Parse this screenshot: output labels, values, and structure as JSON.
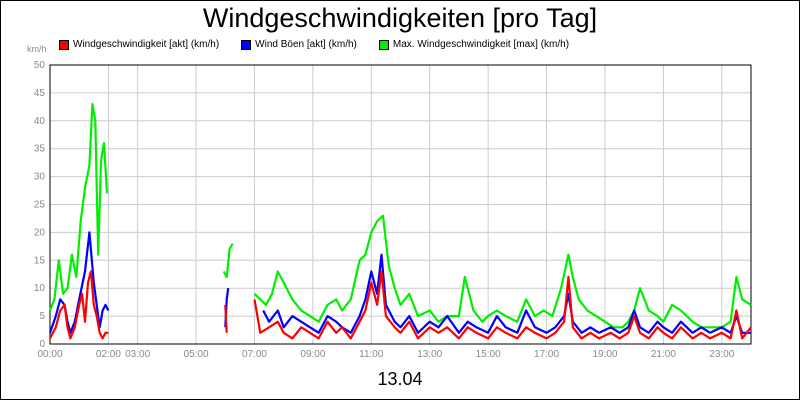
{
  "chart_data": {
    "type": "line",
    "title": "Windgeschwindigkeiten [pro Tag]",
    "xlabel": "13.04",
    "ylabel": "km/h",
    "ylim": [
      0,
      50
    ],
    "xlim_hours": [
      0,
      24
    ],
    "yticks": [
      "0",
      "5",
      "10",
      "15",
      "20",
      "25",
      "30",
      "35",
      "40",
      "45",
      "50"
    ],
    "xticks": [
      "00:00",
      "02:00",
      "03:00",
      "05:00",
      "07:00",
      "09:00",
      "11:00",
      "13:00",
      "15:00",
      "17:00",
      "19:00",
      "21:00",
      "23:00"
    ],
    "xtick_hours": [
      0,
      2,
      3,
      5,
      7,
      9,
      11,
      13,
      15,
      17,
      19,
      21,
      23
    ],
    "grid": true,
    "legend_position": "top-left",
    "series": [
      {
        "name": "Windgeschwindigkeit [akt] (km/h)",
        "color": "#ff0000",
        "segments": [
          [
            [
              0.0,
              1
            ],
            [
              0.2,
              3
            ],
            [
              0.35,
              6
            ],
            [
              0.5,
              7
            ],
            [
              0.6,
              3
            ],
            [
              0.7,
              1
            ],
            [
              0.85,
              3
            ],
            [
              1.0,
              7
            ],
            [
              1.1,
              9
            ],
            [
              1.2,
              4
            ],
            [
              1.3,
              11
            ],
            [
              1.4,
              13
            ],
            [
              1.5,
              7
            ],
            [
              1.6,
              5
            ],
            [
              1.7,
              2
            ],
            [
              1.8,
              1
            ],
            [
              1.9,
              2
            ],
            [
              2.0,
              2
            ]
          ],
          [
            [
              6.0,
              7
            ],
            [
              6.05,
              2
            ]
          ],
          [
            [
              7.0,
              8
            ],
            [
              7.2,
              2
            ],
            [
              7.5,
              3
            ],
            [
              7.8,
              4
            ],
            [
              8.0,
              2
            ],
            [
              8.3,
              1
            ],
            [
              8.6,
              3
            ],
            [
              8.9,
              2
            ],
            [
              9.2,
              1
            ],
            [
              9.5,
              4
            ],
            [
              9.8,
              2
            ],
            [
              10.0,
              3
            ],
            [
              10.3,
              1
            ],
            [
              10.6,
              4
            ],
            [
              10.8,
              6
            ],
            [
              11.0,
              11
            ],
            [
              11.2,
              7
            ],
            [
              11.35,
              13
            ],
            [
              11.5,
              5
            ],
            [
              11.8,
              3
            ],
            [
              12.0,
              2
            ],
            [
              12.3,
              4
            ],
            [
              12.6,
              1
            ],
            [
              13.0,
              3
            ],
            [
              13.3,
              2
            ],
            [
              13.6,
              3
            ],
            [
              14.0,
              1
            ],
            [
              14.3,
              3
            ],
            [
              14.6,
              2
            ],
            [
              15.0,
              1
            ],
            [
              15.3,
              3
            ],
            [
              15.6,
              2
            ],
            [
              16.0,
              1
            ],
            [
              16.3,
              3
            ],
            [
              16.6,
              2
            ],
            [
              17.0,
              1
            ],
            [
              17.3,
              2
            ],
            [
              17.6,
              4
            ],
            [
              17.75,
              12
            ],
            [
              17.9,
              3
            ],
            [
              18.2,
              1
            ],
            [
              18.5,
              2
            ],
            [
              18.8,
              1
            ],
            [
              19.2,
              2
            ],
            [
              19.5,
              1
            ],
            [
              19.8,
              2
            ],
            [
              20.0,
              5
            ],
            [
              20.2,
              2
            ],
            [
              20.5,
              1
            ],
            [
              20.8,
              3
            ],
            [
              21.0,
              2
            ],
            [
              21.3,
              1
            ],
            [
              21.6,
              3
            ],
            [
              22.0,
              1
            ],
            [
              22.3,
              2
            ],
            [
              22.6,
              1
            ],
            [
              23.0,
              2
            ],
            [
              23.3,
              1
            ],
            [
              23.5,
              6
            ],
            [
              23.7,
              1
            ],
            [
              24.0,
              3
            ]
          ]
        ]
      },
      {
        "name": "Wind Böen [akt] (km/h)",
        "color": "#0000ff",
        "segments": [
          [
            [
              0.0,
              2
            ],
            [
              0.2,
              5
            ],
            [
              0.35,
              8
            ],
            [
              0.5,
              7
            ],
            [
              0.6,
              4
            ],
            [
              0.7,
              2
            ],
            [
              0.85,
              4
            ],
            [
              1.0,
              8
            ],
            [
              1.2,
              13
            ],
            [
              1.35,
              20
            ],
            [
              1.5,
              11
            ],
            [
              1.6,
              7
            ],
            [
              1.7,
              3
            ],
            [
              1.8,
              6
            ],
            [
              1.9,
              7
            ],
            [
              2.0,
              6
            ]
          ],
          [
            [
              6.0,
              3
            ],
            [
              6.05,
              8
            ],
            [
              6.1,
              10
            ]
          ],
          [
            [
              7.3,
              6
            ],
            [
              7.5,
              4
            ],
            [
              7.8,
              6
            ],
            [
              8.0,
              3
            ],
            [
              8.3,
              5
            ],
            [
              8.6,
              4
            ],
            [
              8.9,
              3
            ],
            [
              9.2,
              2
            ],
            [
              9.5,
              5
            ],
            [
              9.8,
              4
            ],
            [
              10.0,
              3
            ],
            [
              10.3,
              2
            ],
            [
              10.6,
              5
            ],
            [
              10.8,
              8
            ],
            [
              11.0,
              13
            ],
            [
              11.2,
              9
            ],
            [
              11.35,
              16
            ],
            [
              11.5,
              7
            ],
            [
              11.8,
              4
            ],
            [
              12.0,
              3
            ],
            [
              12.3,
              5
            ],
            [
              12.6,
              2
            ],
            [
              13.0,
              4
            ],
            [
              13.3,
              3
            ],
            [
              13.6,
              5
            ],
            [
              14.0,
              2
            ],
            [
              14.3,
              4
            ],
            [
              14.6,
              3
            ],
            [
              15.0,
              2
            ],
            [
              15.3,
              5
            ],
            [
              15.6,
              3
            ],
            [
              16.0,
              2
            ],
            [
              16.3,
              6
            ],
            [
              16.6,
              3
            ],
            [
              17.0,
              2
            ],
            [
              17.3,
              3
            ],
            [
              17.6,
              5
            ],
            [
              17.75,
              9
            ],
            [
              17.9,
              4
            ],
            [
              18.2,
              2
            ],
            [
              18.5,
              3
            ],
            [
              18.8,
              2
            ],
            [
              19.2,
              3
            ],
            [
              19.5,
              2
            ],
            [
              19.8,
              3
            ],
            [
              20.0,
              6
            ],
            [
              20.2,
              3
            ],
            [
              20.5,
              2
            ],
            [
              20.8,
              4
            ],
            [
              21.0,
              3
            ],
            [
              21.3,
              2
            ],
            [
              21.6,
              4
            ],
            [
              22.0,
              2
            ],
            [
              22.3,
              3
            ],
            [
              22.6,
              2
            ],
            [
              23.0,
              3
            ],
            [
              23.3,
              2
            ],
            [
              23.5,
              5
            ],
            [
              23.7,
              2
            ],
            [
              24.0,
              2
            ]
          ]
        ]
      },
      {
        "name": "Max. Windgeschwindigkeit [max] (km/h)",
        "color": "#00ee00",
        "segments": [
          [
            [
              0.0,
              6
            ],
            [
              0.15,
              8
            ],
            [
              0.3,
              15
            ],
            [
              0.45,
              9
            ],
            [
              0.6,
              10
            ],
            [
              0.75,
              16
            ],
            [
              0.9,
              12
            ],
            [
              1.05,
              22
            ],
            [
              1.2,
              28
            ],
            [
              1.35,
              32
            ],
            [
              1.45,
              43
            ],
            [
              1.55,
              40
            ],
            [
              1.65,
              16
            ],
            [
              1.75,
              33
            ],
            [
              1.85,
              36
            ],
            [
              1.95,
              27
            ]
          ],
          [
            [
              5.95,
              13
            ],
            [
              6.05,
              12
            ],
            [
              6.15,
              17
            ],
            [
              6.25,
              18
            ]
          ],
          [
            [
              7.0,
              9
            ],
            [
              7.2,
              8
            ],
            [
              7.4,
              7
            ],
            [
              7.6,
              9
            ],
            [
              7.8,
              13
            ],
            [
              8.0,
              11
            ],
            [
              8.3,
              8
            ],
            [
              8.6,
              6
            ],
            [
              8.9,
              5
            ],
            [
              9.2,
              4
            ],
            [
              9.5,
              7
            ],
            [
              9.8,
              8
            ],
            [
              10.0,
              6
            ],
            [
              10.3,
              8
            ],
            [
              10.6,
              15
            ],
            [
              10.8,
              16
            ],
            [
              11.0,
              20
            ],
            [
              11.2,
              22
            ],
            [
              11.4,
              23
            ],
            [
              11.6,
              14
            ],
            [
              11.8,
              10
            ],
            [
              12.0,
              7
            ],
            [
              12.3,
              9
            ],
            [
              12.6,
              5
            ],
            [
              13.0,
              6
            ],
            [
              13.3,
              4
            ],
            [
              13.6,
              5
            ],
            [
              14.0,
              5
            ],
            [
              14.2,
              12
            ],
            [
              14.5,
              6
            ],
            [
              14.8,
              4
            ],
            [
              15.0,
              5
            ],
            [
              15.3,
              6
            ],
            [
              15.6,
              5
            ],
            [
              16.0,
              4
            ],
            [
              16.3,
              8
            ],
            [
              16.6,
              5
            ],
            [
              16.9,
              6
            ],
            [
              17.2,
              5
            ],
            [
              17.5,
              10
            ],
            [
              17.75,
              16
            ],
            [
              17.9,
              12
            ],
            [
              18.1,
              8
            ],
            [
              18.4,
              6
            ],
            [
              18.7,
              5
            ],
            [
              19.0,
              4
            ],
            [
              19.3,
              3
            ],
            [
              19.6,
              3
            ],
            [
              19.8,
              4
            ],
            [
              20.0,
              6
            ],
            [
              20.2,
              10
            ],
            [
              20.5,
              6
            ],
            [
              20.8,
              5
            ],
            [
              21.0,
              4
            ],
            [
              21.3,
              7
            ],
            [
              21.6,
              6
            ],
            [
              22.0,
              4
            ],
            [
              22.3,
              3
            ],
            [
              22.6,
              3
            ],
            [
              23.0,
              3
            ],
            [
              23.3,
              4
            ],
            [
              23.5,
              12
            ],
            [
              23.7,
              8
            ],
            [
              24.0,
              7
            ]
          ]
        ]
      }
    ]
  }
}
